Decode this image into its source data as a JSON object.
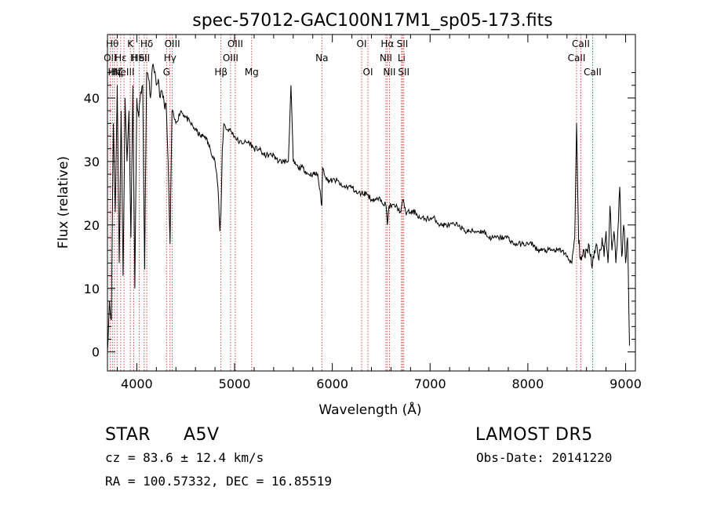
{
  "chart_data": {
    "type": "line",
    "title": "spec-57012-GAC100N17M1_sp05-173.fits",
    "xlabel": "Wavelength (Å)",
    "ylabel": "Flux (relative)",
    "xlim": [
      3700,
      9100
    ],
    "ylim": [
      -3,
      50
    ],
    "xticks": [
      4000,
      5000,
      6000,
      7000,
      8000,
      9000
    ],
    "yticks": [
      0,
      10,
      20,
      30,
      40
    ],
    "grid": false,
    "series": [
      {
        "x": [
          3700,
          3720,
          3740,
          3760,
          3780,
          3800,
          3820,
          3840,
          3860,
          3880,
          3900,
          3920,
          3940,
          3960,
          3980,
          4000,
          4020,
          4040,
          4060,
          4080,
          4100,
          4120,
          4140,
          4160,
          4180,
          4200,
          4220,
          4240,
          4260,
          4280,
          4300,
          4320,
          4340,
          4360,
          4380,
          4400,
          4450,
          4500,
          4550,
          4600,
          4650,
          4700,
          4750,
          4800,
          4830,
          4850,
          4861,
          4875,
          4890,
          4920,
          4950,
          5000,
          5050,
          5100,
          5150,
          5200,
          5250,
          5300,
          5350,
          5400,
          5450,
          5500,
          5550,
          5577,
          5600,
          5650,
          5700,
          5750,
          5800,
          5850,
          5893,
          5900,
          5950,
          6000,
          6050,
          6100,
          6150,
          6200,
          6250,
          6300,
          6350,
          6400,
          6450,
          6500,
          6550,
          6563,
          6580,
          6600,
          6650,
          6700,
          6725,
          6750,
          6800,
          6850,
          6900,
          6950,
          7000,
          7050,
          7100,
          7150,
          7200,
          7250,
          7300,
          7350,
          7400,
          7450,
          7500,
          7550,
          7600,
          7650,
          7700,
          7750,
          7800,
          7850,
          7900,
          7950,
          8000,
          8050,
          8100,
          8150,
          8200,
          8250,
          8300,
          8350,
          8400,
          8450,
          8480,
          8498,
          8520,
          8542,
          8560,
          8580,
          8600,
          8620,
          8640,
          8662,
          8680,
          8700,
          8720,
          8740,
          8760,
          8780,
          8800,
          8820,
          8840,
          8860,
          8880,
          8900,
          8920,
          8940,
          8960,
          8980,
          9000,
          9020,
          9040
        ],
        "y": [
          0,
          8,
          5,
          36,
          22,
          42,
          14,
          38,
          12,
          40,
          30,
          38,
          18,
          42,
          10,
          40,
          37,
          41,
          42,
          13,
          44,
          43,
          40,
          45,
          44,
          42,
          43,
          40,
          41,
          39,
          39,
          30,
          17,
          38,
          37,
          36,
          38,
          37,
          36,
          35,
          34,
          34,
          32,
          30,
          26,
          19,
          22,
          32,
          36,
          35,
          35,
          34,
          33,
          33,
          33,
          32,
          32,
          31,
          31,
          31,
          30,
          30,
          30,
          42,
          30,
          29,
          29,
          28,
          28,
          28,
          23,
          29,
          27,
          27,
          27,
          26,
          26,
          26,
          25,
          25,
          25,
          24,
          24,
          24,
          23,
          20,
          23,
          23,
          23,
          22,
          24,
          22,
          22,
          22,
          21,
          21,
          21,
          21,
          20,
          20,
          20,
          20,
          20,
          19,
          19,
          19,
          19,
          19,
          18,
          18,
          18,
          18,
          18,
          17,
          17,
          17,
          17,
          17,
          16,
          16,
          16,
          16,
          16,
          16,
          15,
          14,
          18,
          36,
          17,
          15,
          15,
          15,
          16,
          17,
          15,
          14,
          16,
          17,
          15,
          16,
          18,
          15,
          19,
          14,
          23,
          16,
          19,
          14,
          19,
          26,
          15,
          20,
          14,
          18,
          1
        ]
      }
    ],
    "lines": [
      {
        "wl": 3727,
        "label": "OII",
        "row": 1
      },
      {
        "wl": 3750,
        "label": "Hθ",
        "row": 0
      },
      {
        "wl": 3771,
        "label": "Hη",
        "row": 2
      },
      {
        "wl": 3798,
        "label": "Hζ",
        "row": 2
      },
      {
        "wl": 3835,
        "label": "Hε",
        "row": 1
      },
      {
        "wl": 3869,
        "label": "NeIII",
        "row": 2
      },
      {
        "wl": 3934,
        "label": "K",
        "row": 0
      },
      {
        "wl": 3969,
        "label": "H",
        "row": 1
      },
      {
        "wl": 4026,
        "label": "HeI",
        "row": 1
      },
      {
        "wl": 4102,
        "label": "Hδ",
        "row": 0
      },
      {
        "wl": 4076,
        "label": "SII",
        "row": 1
      },
      {
        "wl": 4304,
        "label": "G",
        "row": 2
      },
      {
        "wl": 4340,
        "label": "Hγ",
        "row": 1
      },
      {
        "wl": 4363,
        "label": "OIII",
        "row": 0
      },
      {
        "wl": 4861,
        "label": "Hβ",
        "row": 2
      },
      {
        "wl": 4959,
        "label": "OIII",
        "row": 1
      },
      {
        "wl": 5007,
        "label": "OIII",
        "row": 0
      },
      {
        "wl": 5175,
        "label": "Mg",
        "row": 2
      },
      {
        "wl": 5893,
        "label": "Na",
        "row": 1
      },
      {
        "wl": 6300,
        "label": "OI",
        "row": 0
      },
      {
        "wl": 6364,
        "label": "OI",
        "row": 2
      },
      {
        "wl": 6548,
        "label": "NII",
        "row": 1
      },
      {
        "wl": 6563,
        "label": "Hα",
        "row": 0
      },
      {
        "wl": 6584,
        "label": "NII",
        "row": 2
      },
      {
        "wl": 6708,
        "label": "Li",
        "row": 1
      },
      {
        "wl": 6717,
        "label": "SII",
        "row": 0
      },
      {
        "wl": 6731,
        "label": "SII",
        "row": 2
      },
      {
        "wl": 8498,
        "label": "CaII",
        "row": 1
      },
      {
        "wl": 8542,
        "label": "CaII",
        "row": 0
      },
      {
        "wl": 8662,
        "label": "CaII",
        "row": 2
      }
    ]
  },
  "info": {
    "object_class": "STAR",
    "subclass": "A5V",
    "survey": "LAMOST DR5",
    "cz": "cz = 83.6 ± 12.4 km/s",
    "obs_date": "Obs-Date: 20141220",
    "coords": "RA = 100.57332, DEC =  16.85519"
  },
  "colors": {
    "spectrum": "#000000",
    "line_markers": "#cc2222",
    "axes": "#000000"
  }
}
